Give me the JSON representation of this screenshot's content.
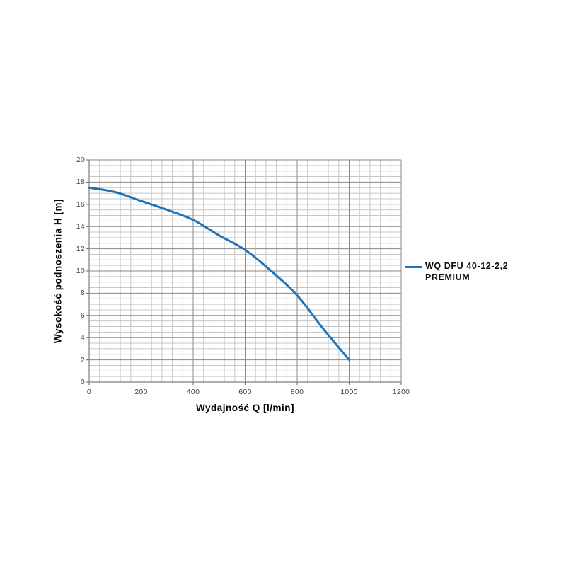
{
  "chart_data": {
    "type": "line",
    "xlabel": "Wydajność Q [l/min]",
    "ylabel": "Wysokość podnoszenia H [m]",
    "xlim": [
      0,
      1200
    ],
    "ylim": [
      0,
      20
    ],
    "x_ticks": [
      0,
      200,
      400,
      600,
      800,
      1000,
      1200
    ],
    "y_ticks": [
      0,
      2,
      4,
      6,
      8,
      10,
      12,
      14,
      16,
      18,
      20
    ],
    "x_major_step": 200,
    "x_minor_step": 40,
    "y_major_step": 2,
    "y_minor_step": 0.5,
    "grid": "major+minor",
    "legend_position": "right",
    "series": [
      {
        "name": "WQ DFU 40-12-2,2 PREMIUM",
        "color": "#1F73B6",
        "x": [
          0,
          100,
          200,
          300,
          400,
          500,
          600,
          700,
          800,
          900,
          1000
        ],
        "y": [
          17.5,
          17.1,
          16.3,
          15.5,
          14.6,
          13.2,
          11.9,
          10.0,
          7.8,
          4.8,
          2.0
        ]
      }
    ],
    "colors": {
      "background": "#ffffff",
      "major_grid": "#8a8a8a",
      "minor_grid": "#c7c7c7",
      "axis": "#7f7f7f",
      "tick_label": "#3f3f3f",
      "series": "#1F73B6"
    }
  },
  "legend": {
    "label_line1": "WQ DFU 40-12-2,2",
    "label_line2": "PREMIUM"
  }
}
